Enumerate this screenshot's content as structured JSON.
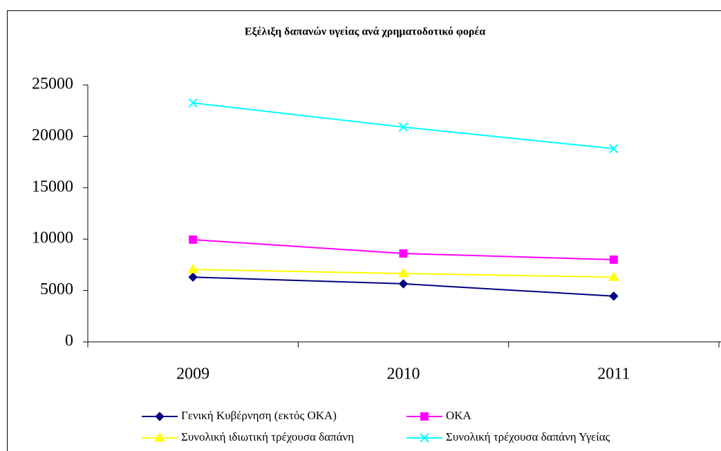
{
  "chart_data": {
    "type": "line",
    "title": "Εξέλιξη δαπανών υγείας ανά χρηματοδοτικό φορέα",
    "categories": [
      "2009",
      "2010",
      "2011"
    ],
    "series": [
      {
        "name": "Γενική Κυβέρνηση (εκτός ΟΚΑ)",
        "color": "#000080",
        "marker": "diamond",
        "values": [
          6300,
          5650,
          4450
        ]
      },
      {
        "name": "ΟΚΑ",
        "color": "#ff00ff",
        "marker": "square",
        "values": [
          9950,
          8600,
          8000
        ]
      },
      {
        "name": "Συνολική ιδιωτική τρέχουσα δαπάνη",
        "color": "#ffff00",
        "marker": "triangle",
        "values": [
          7050,
          6650,
          6300
        ]
      },
      {
        "name": "Συνολική τρέχουσα δαπάνη Υγείας",
        "color": "#00ffff",
        "marker": "x",
        "values": [
          23250,
          20900,
          18800
        ]
      }
    ],
    "ylim": [
      0,
      25000
    ],
    "yticks": [
      0,
      5000,
      10000,
      15000,
      20000,
      25000
    ],
    "grid": false
  }
}
